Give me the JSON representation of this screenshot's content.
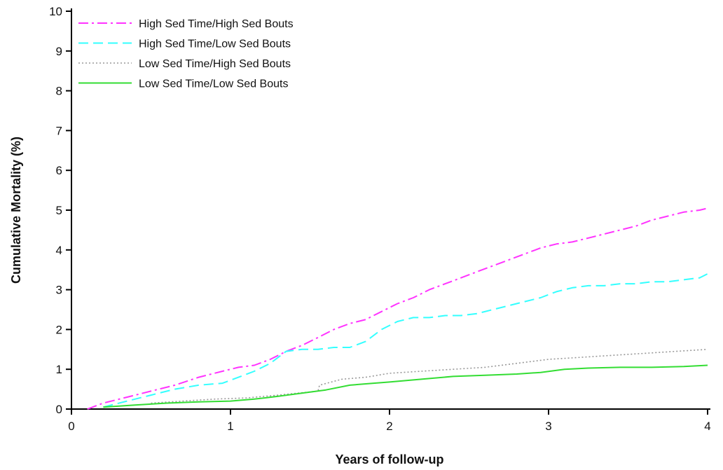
{
  "chart_data": {
    "type": "line",
    "title": "",
    "xlabel": "Years of follow-up",
    "ylabel": "Cumulative Mortality (%)",
    "xlim": [
      0,
      4
    ],
    "ylim": [
      0,
      10
    ],
    "x_ticks": [
      0,
      1,
      2,
      3,
      4
    ],
    "y_ticks": [
      0,
      1,
      2,
      3,
      4,
      5,
      6,
      7,
      8,
      9,
      10
    ],
    "grid": false,
    "legend_position": "top-left",
    "series": [
      {
        "name": "High Sed Time/High Sed Bouts",
        "color": "#ff33ff",
        "line_style": "dash-dot",
        "x": [
          0.1,
          0.2,
          0.35,
          0.5,
          0.65,
          0.8,
          0.95,
          1.05,
          1.15,
          1.25,
          1.35,
          1.45,
          1.55,
          1.65,
          1.75,
          1.85,
          1.95,
          2.05,
          2.15,
          2.25,
          2.35,
          2.45,
          2.55,
          2.65,
          2.75,
          2.85,
          2.95,
          3.05,
          3.15,
          3.25,
          3.35,
          3.45,
          3.55,
          3.65,
          3.75,
          3.85,
          3.95,
          4.0
        ],
        "y": [
          0.0,
          0.15,
          0.3,
          0.45,
          0.6,
          0.8,
          0.95,
          1.05,
          1.1,
          1.25,
          1.45,
          1.6,
          1.8,
          2.0,
          2.15,
          2.25,
          2.45,
          2.65,
          2.8,
          3.0,
          3.15,
          3.3,
          3.45,
          3.6,
          3.75,
          3.9,
          4.05,
          4.15,
          4.2,
          4.3,
          4.4,
          4.5,
          4.6,
          4.75,
          4.85,
          4.95,
          5.0,
          5.05
        ]
      },
      {
        "name": "High Sed Time/Low Sed Bouts",
        "color": "#33ffff",
        "line_style": "dashed",
        "x": [
          0.2,
          0.35,
          0.5,
          0.65,
          0.8,
          0.95,
          1.05,
          1.15,
          1.25,
          1.35,
          1.45,
          1.55,
          1.65,
          1.75,
          1.85,
          1.95,
          2.05,
          2.15,
          2.25,
          2.35,
          2.45,
          2.55,
          2.65,
          2.75,
          2.85,
          2.95,
          3.05,
          3.15,
          3.25,
          3.35,
          3.45,
          3.55,
          3.65,
          3.75,
          3.85,
          3.95,
          4.0
        ],
        "y": [
          0.05,
          0.2,
          0.35,
          0.5,
          0.6,
          0.65,
          0.8,
          0.95,
          1.15,
          1.45,
          1.5,
          1.5,
          1.55,
          1.55,
          1.7,
          2.0,
          2.2,
          2.3,
          2.3,
          2.35,
          2.35,
          2.4,
          2.5,
          2.6,
          2.7,
          2.8,
          2.95,
          3.05,
          3.1,
          3.1,
          3.15,
          3.15,
          3.2,
          3.2,
          3.25,
          3.3,
          3.4
        ]
      },
      {
        "name": "Low Sed Time/High Sed Bouts",
        "color": "#999999",
        "line_style": "dotted",
        "x": [
          0.5,
          0.7,
          0.9,
          1.1,
          1.3,
          1.55,
          1.56,
          1.7,
          1.85,
          2.0,
          2.2,
          2.4,
          2.6,
          2.8,
          3.0,
          3.2,
          3.4,
          3.6,
          3.8,
          4.0
        ],
        "y": [
          0.15,
          0.2,
          0.25,
          0.28,
          0.35,
          0.45,
          0.6,
          0.75,
          0.8,
          0.9,
          0.95,
          1.0,
          1.05,
          1.15,
          1.25,
          1.3,
          1.35,
          1.4,
          1.45,
          1.5
        ]
      },
      {
        "name": "Low Sed Time/Low Sed Bouts",
        "color": "#33dd33",
        "line_style": "solid",
        "x": [
          0.2,
          0.4,
          0.6,
          0.8,
          1.0,
          1.15,
          1.3,
          1.45,
          1.6,
          1.75,
          1.9,
          2.0,
          2.2,
          2.4,
          2.6,
          2.8,
          2.95,
          3.1,
          3.25,
          3.45,
          3.65,
          3.85,
          4.0
        ],
        "y": [
          0.05,
          0.1,
          0.15,
          0.18,
          0.2,
          0.25,
          0.32,
          0.4,
          0.48,
          0.6,
          0.65,
          0.68,
          0.75,
          0.82,
          0.85,
          0.88,
          0.92,
          1.0,
          1.03,
          1.05,
          1.05,
          1.07,
          1.1
        ]
      }
    ]
  }
}
